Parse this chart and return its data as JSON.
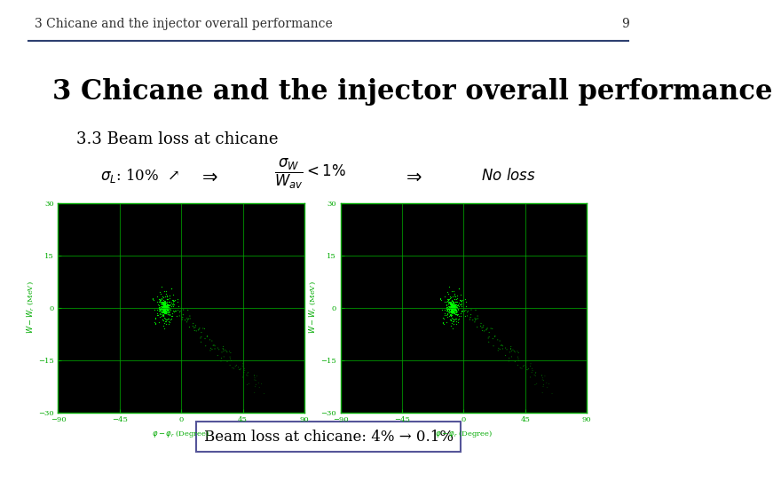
{
  "slide_title": "3 Chicane and the injector overall performance",
  "slide_number": "9",
  "main_title": "3 Chicane and the injector overall performance",
  "subtitle": "3.3 Beam loss at chicane",
  "background_color": "#ffffff",
  "header_line_color": "#2e4070",
  "left_bar_color": "#cc00cc",
  "right_bar_color": "#cc00cc",
  "box_text": "Beam loss at chicane: 4% → 0.1%",
  "plot_bg": "#000000",
  "plot_grid_color": "#00aa00",
  "plot_axis_color": "#00aa00",
  "plot_tick_color": "#00aa00",
  "plot_label_color": "#00aa00",
  "title_fontsize": 22,
  "subtitle_fontsize": 13,
  "header_fontsize": 10
}
